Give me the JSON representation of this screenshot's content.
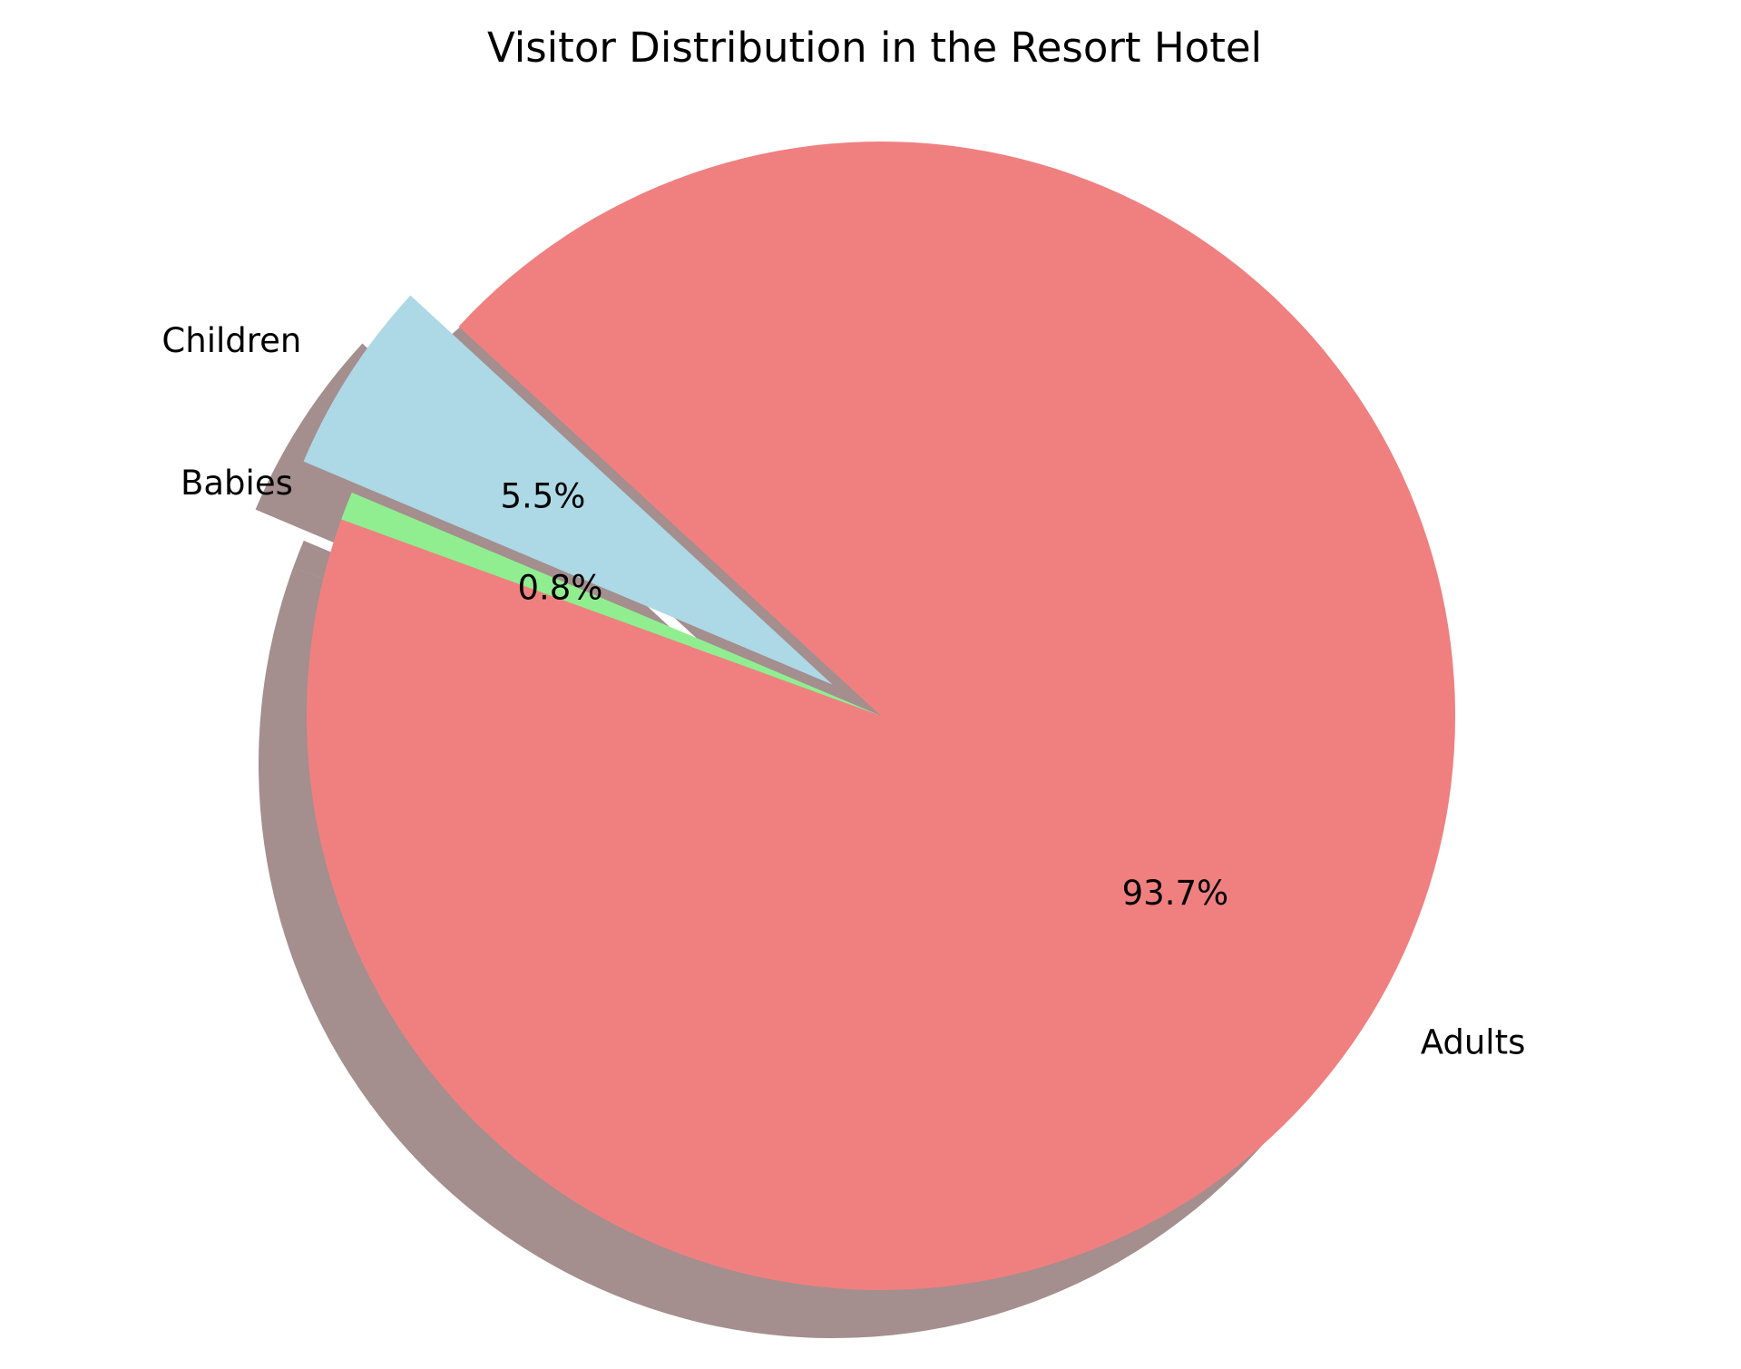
{
  "chart_data": {
    "type": "pie",
    "title": "Visitor Distribution in the Resort Hotel",
    "categories": [
      "Adults",
      "Children",
      "Babies"
    ],
    "values": [
      93.7,
      5.5,
      0.8
    ],
    "percent_labels": [
      "93.7%",
      "5.5%",
      "0.8%"
    ],
    "colors": [
      "#f08080",
      "#add8e6",
      "#90ee90"
    ],
    "exploded": [
      false,
      true,
      false
    ],
    "shadow": true
  }
}
